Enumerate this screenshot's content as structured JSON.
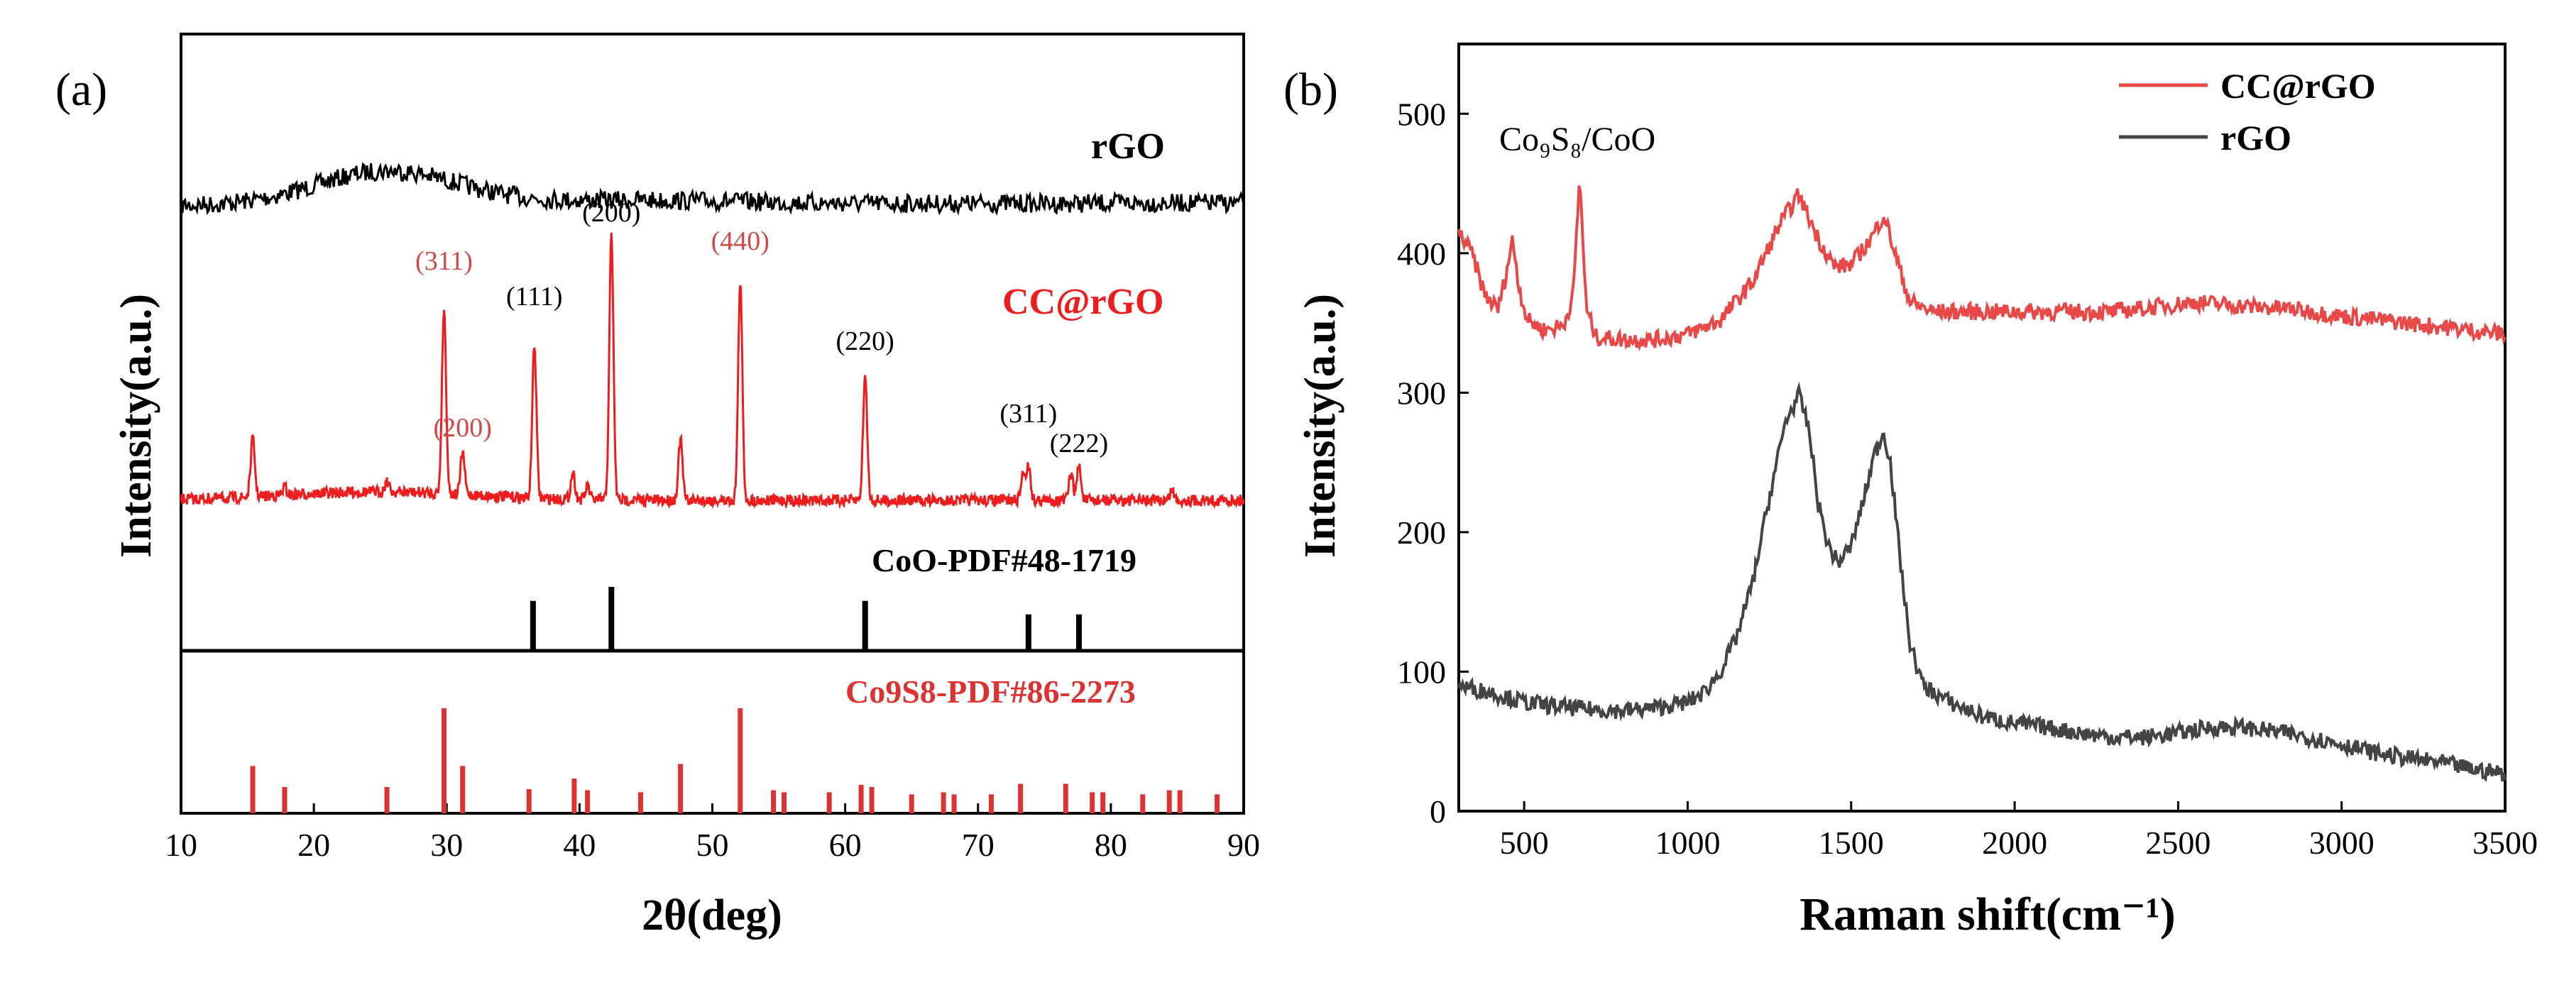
{
  "colors": {
    "red": "#ee1c1c",
    "redLine": "#e84848",
    "black": "#000000",
    "gray": "#444444",
    "pdfRed": "#dc3232"
  },
  "chart_data": [
    {
      "panel_label": "(a)",
      "type": "line",
      "title": "",
      "xlabel": "2θ(deg)",
      "ylabel": "Intensity(a.u.)",
      "xlim": [
        10,
        90
      ],
      "xticks": [
        10,
        20,
        30,
        40,
        50,
        60,
        70,
        80,
        90
      ],
      "yticks_shown": false,
      "series": [
        {
          "name": "rGO",
          "color": "#000000",
          "shape": "broad hump centered near 26° on a noisy baseline"
        },
        {
          "name": "CC@rGO",
          "color": "#ee1c1c",
          "peaks": [
            {
              "x": 15.4,
              "rel_height": 0.22
            },
            {
              "x": 17.8,
              "rel_height": 0.03
            },
            {
              "x": 25.5,
              "rel_height": 0.04
            },
            {
              "x": 29.8,
              "rel_height": 0.7
            },
            {
              "x": 31.2,
              "rel_height": 0.16
            },
            {
              "x": 36.6,
              "rel_height": 0.58
            },
            {
              "x": 39.5,
              "rel_height": 0.1
            },
            {
              "x": 40.6,
              "rel_height": 0.05
            },
            {
              "x": 42.4,
              "rel_height": 1.0
            },
            {
              "x": 47.6,
              "rel_height": 0.23
            },
            {
              "x": 52.1,
              "rel_height": 0.83
            },
            {
              "x": 61.5,
              "rel_height": 0.47
            },
            {
              "x": 73.4,
              "rel_height": 0.1
            },
            {
              "x": 73.8,
              "rel_height": 0.13
            },
            {
              "x": 77.0,
              "rel_height": 0.1
            },
            {
              "x": 77.6,
              "rel_height": 0.13
            },
            {
              "x": 84.6,
              "rel_height": 0.04
            }
          ]
        }
      ],
      "curve_labels": {
        "rGO": "rGO",
        "CCrGO": "CC@rGO"
      },
      "peak_labels": [
        {
          "text": "(311)",
          "x": 29.8,
          "color": "red"
        },
        {
          "text": "(200)",
          "x": 31.2,
          "color": "red"
        },
        {
          "text": "(111)",
          "x": 36.6,
          "color": "black"
        },
        {
          "text": "(200)",
          "x": 42.4,
          "color": "black"
        },
        {
          "text": "(440)",
          "x": 52.1,
          "color": "red"
        },
        {
          "text": "(220)",
          "x": 61.5,
          "color": "black"
        },
        {
          "text": "(311)",
          "x": 73.8,
          "color": "black"
        },
        {
          "text": "(222)",
          "x": 77.6,
          "color": "black"
        }
      ],
      "reference_patterns": [
        {
          "label": "CoO-PDF#48-1719",
          "color": "black",
          "lines": [
            {
              "x": 36.5,
              "rel": 0.78
            },
            {
              "x": 42.4,
              "rel": 1.0
            },
            {
              "x": 61.5,
              "rel": 0.78
            },
            {
              "x": 73.8,
              "rel": 0.57
            },
            {
              "x": 77.6,
              "rel": 0.57
            }
          ]
        },
        {
          "label": "Co9S8-PDF#86-2273",
          "color": "red",
          "lines": [
            {
              "x": 15.4,
              "rel": 0.45
            },
            {
              "x": 17.8,
              "rel": 0.25
            },
            {
              "x": 25.5,
              "rel": 0.25
            },
            {
              "x": 29.8,
              "rel": 1.0
            },
            {
              "x": 31.2,
              "rel": 0.45
            },
            {
              "x": 36.2,
              "rel": 0.23
            },
            {
              "x": 39.6,
              "rel": 0.33
            },
            {
              "x": 40.6,
              "rel": 0.22
            },
            {
              "x": 44.6,
              "rel": 0.2
            },
            {
              "x": 47.6,
              "rel": 0.47
            },
            {
              "x": 52.1,
              "rel": 1.0
            },
            {
              "x": 54.6,
              "rel": 0.22
            },
            {
              "x": 55.4,
              "rel": 0.2
            },
            {
              "x": 58.8,
              "rel": 0.2
            },
            {
              "x": 61.2,
              "rel": 0.27
            },
            {
              "x": 62.0,
              "rel": 0.25
            },
            {
              "x": 65.0,
              "rel": 0.18
            },
            {
              "x": 67.4,
              "rel": 0.2
            },
            {
              "x": 68.2,
              "rel": 0.18
            },
            {
              "x": 71.0,
              "rel": 0.18
            },
            {
              "x": 73.2,
              "rel": 0.28
            },
            {
              "x": 76.6,
              "rel": 0.28
            },
            {
              "x": 78.6,
              "rel": 0.2
            },
            {
              "x": 79.4,
              "rel": 0.2
            },
            {
              "x": 82.4,
              "rel": 0.18
            },
            {
              "x": 84.4,
              "rel": 0.22
            },
            {
              "x": 85.2,
              "rel": 0.22
            },
            {
              "x": 88.0,
              "rel": 0.18
            }
          ]
        }
      ]
    },
    {
      "panel_label": "(b)",
      "type": "line",
      "title": "",
      "xlabel": "Raman shift(cm⁻¹)",
      "ylabel": "Intensity(a.u.)",
      "xlim": [
        300,
        3500
      ],
      "ylim": [
        0,
        550
      ],
      "xticks": [
        500,
        1000,
        1500,
        2000,
        2500,
        3000,
        3500
      ],
      "yticks": [
        0,
        100,
        200,
        300,
        400,
        500
      ],
      "legend_position": "top-right",
      "legend": [
        {
          "name": "CC@rGO",
          "color": "#e84848"
        },
        {
          "name": "rGO",
          "color": "#444444"
        }
      ],
      "annotation": "Co₉S₈/CoO",
      "series": [
        {
          "name": "CC@rGO",
          "color": "#e84848",
          "points": [
            [
              300,
              415
            ],
            [
              340,
              400
            ],
            [
              380,
              370
            ],
            [
              420,
              360
            ],
            [
              440,
              380
            ],
            [
              465,
              410
            ],
            [
              485,
              375
            ],
            [
              510,
              352
            ],
            [
              560,
              345
            ],
            [
              620,
              348
            ],
            [
              650,
              370
            ],
            [
              670,
              455
            ],
            [
              690,
              360
            ],
            [
              720,
              340
            ],
            [
              800,
              338
            ],
            [
              900,
              338
            ],
            [
              1000,
              342
            ],
            [
              1100,
              352
            ],
            [
              1200,
              380
            ],
            [
              1280,
              420
            ],
            [
              1340,
              442
            ],
            [
              1400,
              410
            ],
            [
              1450,
              390
            ],
            [
              1500,
              392
            ],
            [
              1560,
              410
            ],
            [
              1600,
              428
            ],
            [
              1640,
              395
            ],
            [
              1680,
              365
            ],
            [
              1750,
              358
            ],
            [
              1900,
              358
            ],
            [
              2100,
              358
            ],
            [
              2300,
              358
            ],
            [
              2450,
              362
            ],
            [
              2550,
              365
            ],
            [
              2700,
              362
            ],
            [
              2850,
              360
            ],
            [
              3000,
              355
            ],
            [
              3200,
              350
            ],
            [
              3350,
              346
            ],
            [
              3500,
              342
            ]
          ]
        },
        {
          "name": "rGO",
          "color": "#444444",
          "points": [
            [
              300,
              90
            ],
            [
              400,
              85
            ],
            [
              500,
              78
            ],
            [
              600,
              75
            ],
            [
              700,
              73
            ],
            [
              800,
              72
            ],
            [
              900,
              74
            ],
            [
              1000,
              78
            ],
            [
              1050,
              85
            ],
            [
              1100,
              100
            ],
            [
              1150,
              125
            ],
            [
              1200,
              165
            ],
            [
              1250,
              225
            ],
            [
              1300,
              280
            ],
            [
              1340,
              298
            ],
            [
              1370,
              275
            ],
            [
              1400,
              220
            ],
            [
              1430,
              190
            ],
            [
              1460,
              178
            ],
            [
              1500,
              190
            ],
            [
              1540,
              225
            ],
            [
              1570,
              255
            ],
            [
              1600,
              272
            ],
            [
              1620,
              250
            ],
            [
              1650,
              180
            ],
            [
              1680,
              120
            ],
            [
              1720,
              90
            ],
            [
              1800,
              78
            ],
            [
              1900,
              68
            ],
            [
              2000,
              63
            ],
            [
              2100,
              60
            ],
            [
              2200,
              56
            ],
            [
              2300,
              53
            ],
            [
              2400,
              53
            ],
            [
              2500,
              56
            ],
            [
              2600,
              60
            ],
            [
              2700,
              60
            ],
            [
              2800,
              57
            ],
            [
              2900,
              53
            ],
            [
              3000,
              48
            ],
            [
              3100,
              42
            ],
            [
              3200,
              38
            ],
            [
              3300,
              35
            ],
            [
              3400,
              30
            ],
            [
              3500,
              27
            ]
          ]
        }
      ]
    }
  ]
}
